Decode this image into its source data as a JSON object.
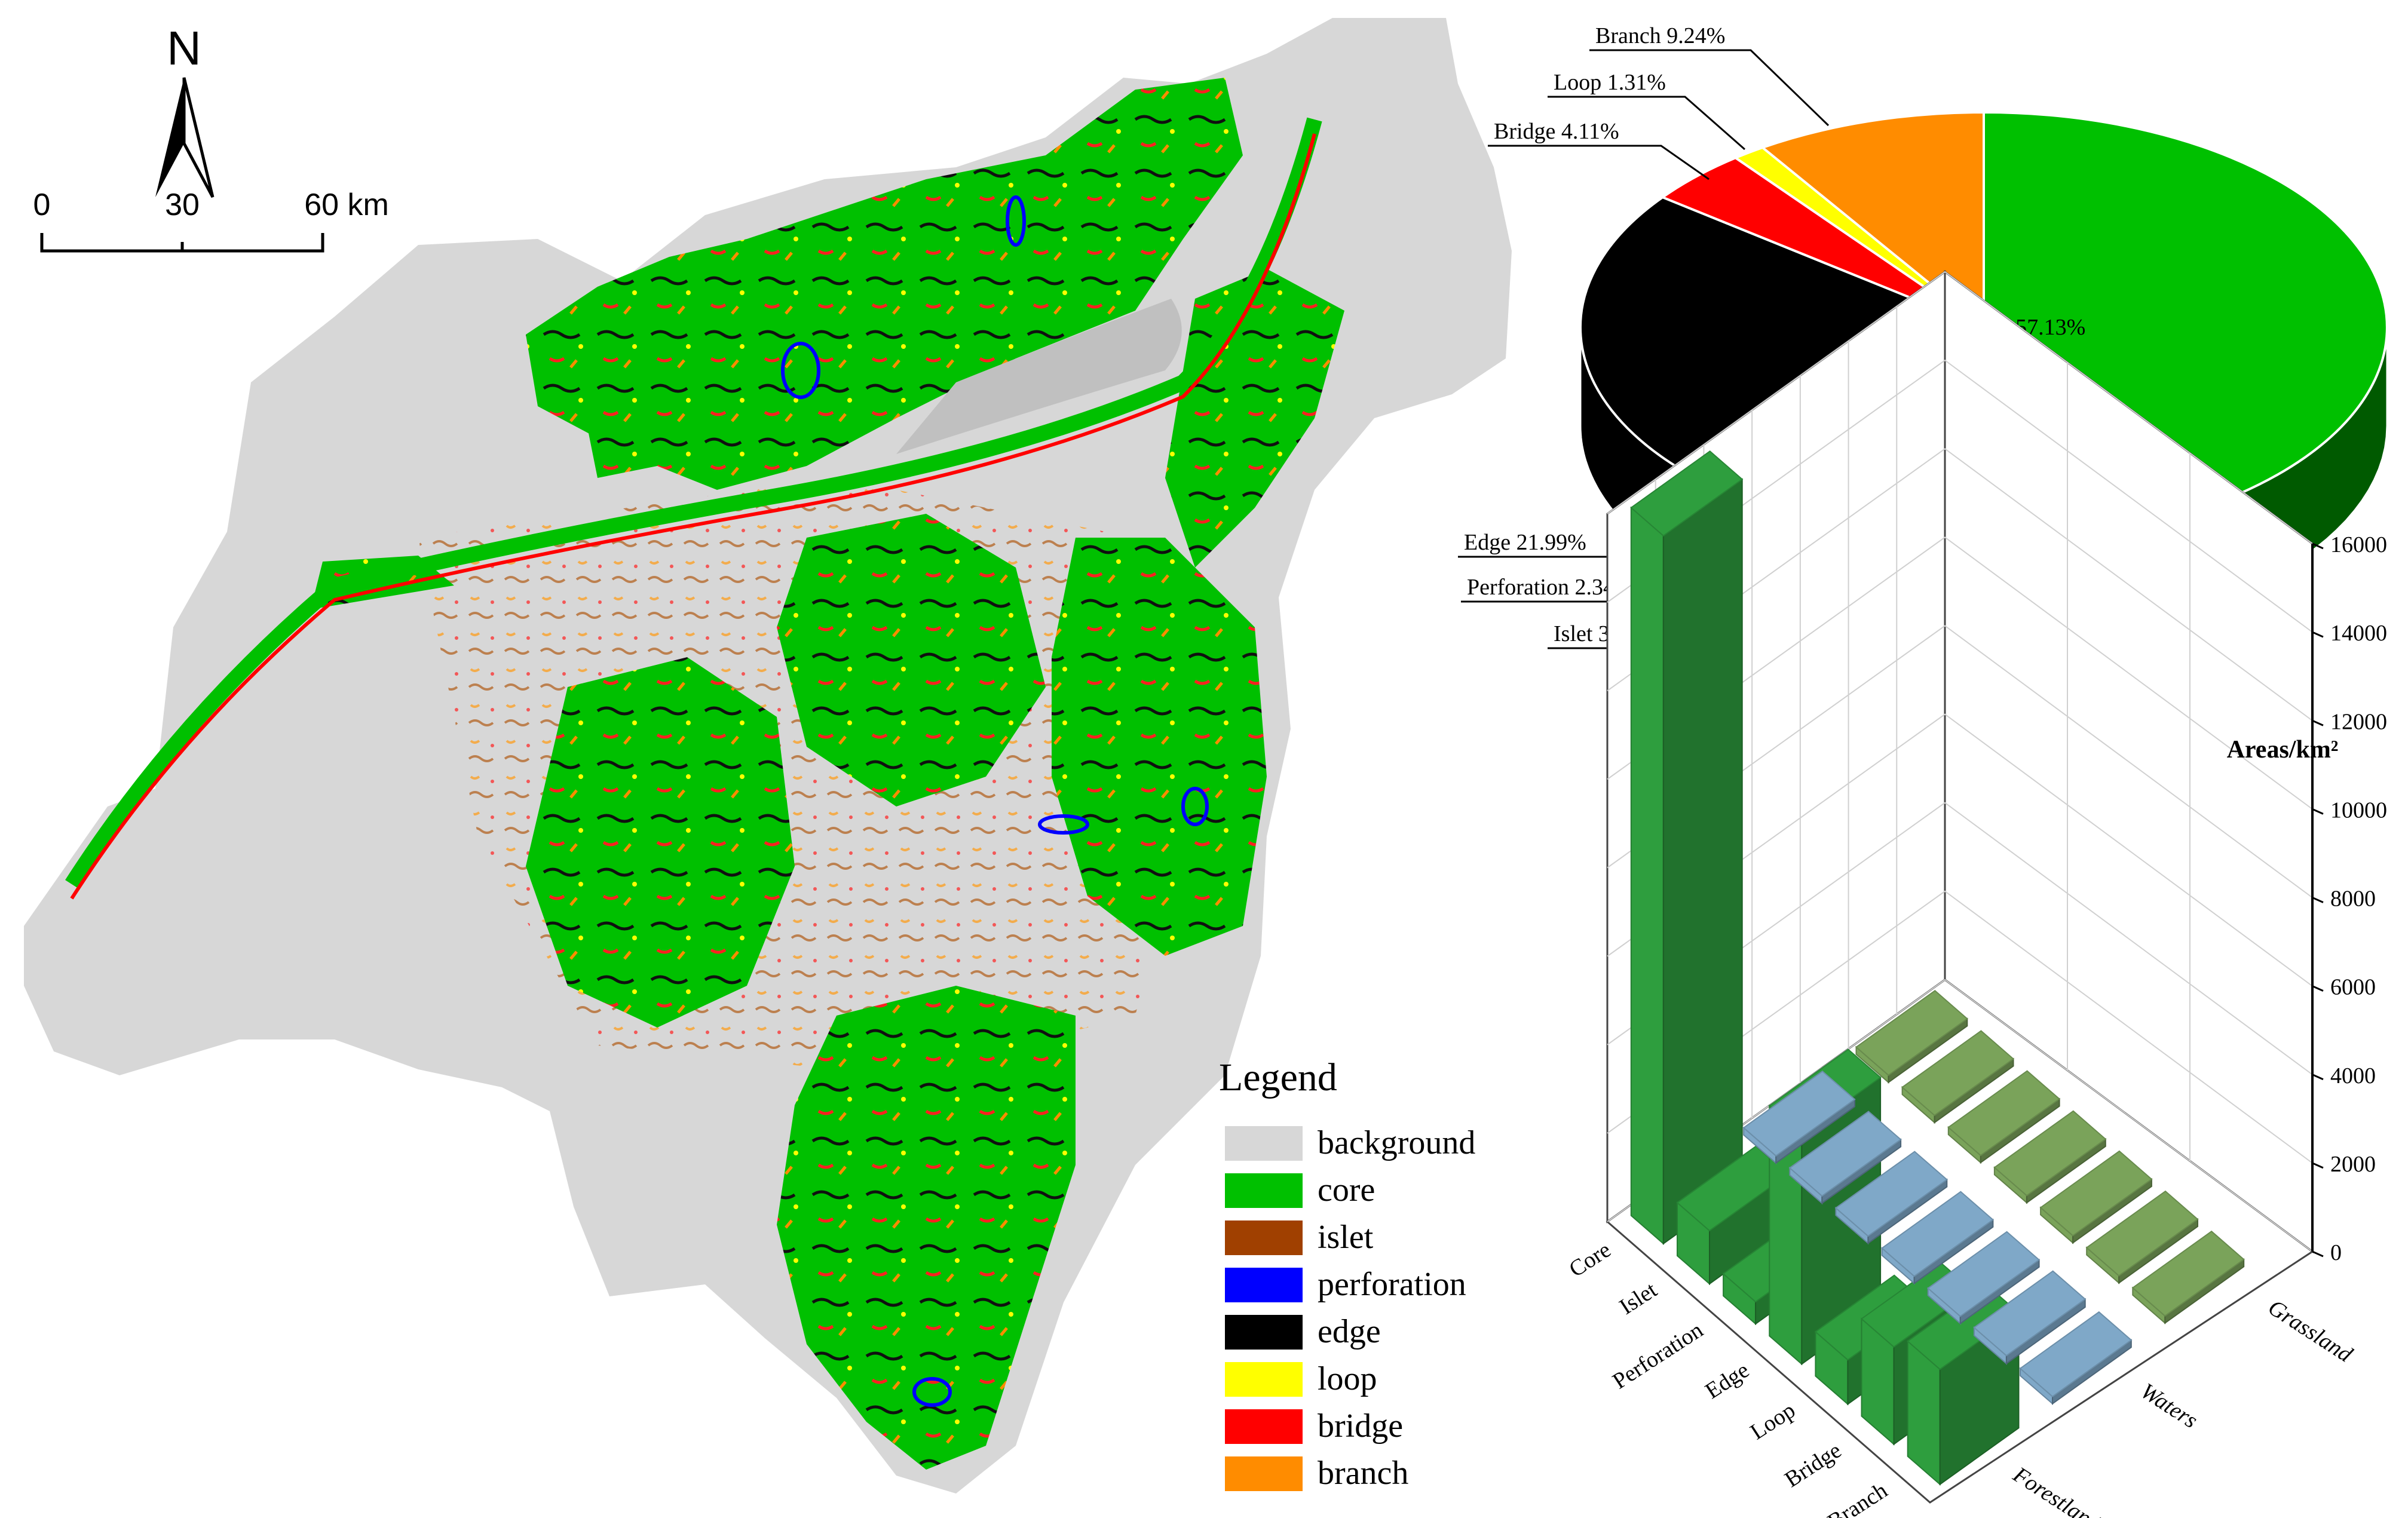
{
  "map": {
    "north_label": "N",
    "scale_labels": [
      "0",
      "30",
      "60 km"
    ],
    "legend": {
      "title": "Legend",
      "items": [
        {
          "label": "background",
          "color": "#d7d7d7"
        },
        {
          "label": "core",
          "color": "#00c000"
        },
        {
          "label": "islet",
          "color": "#a04000"
        },
        {
          "label": "perforation",
          "color": "#0000ff"
        },
        {
          "label": "edge",
          "color": "#000000"
        },
        {
          "label": "loop",
          "color": "#ffff00"
        },
        {
          "label": "bridge",
          "color": "#ff0000"
        },
        {
          "label": "branch",
          "color": "#ff8c00"
        }
      ]
    }
  },
  "chart_data": [
    {
      "type": "pie",
      "labels": [
        "Core 57.13%",
        "Edge 21.99%",
        "Perforation 2.34%",
        "Islet 3.88%",
        "Bridge 4.11%",
        "Loop 1.31%",
        "Branch 9.24%"
      ],
      "slices": [
        {
          "name": "Core",
          "value": 57.13,
          "color": "#00c000",
          "side": "#005a00"
        },
        {
          "name": "Islet",
          "value": 3.88,
          "color": "#a04000",
          "side": "#5c2400"
        },
        {
          "name": "Perforation",
          "value": 2.34,
          "color": "#0000ff",
          "side": "#00008a"
        },
        {
          "name": "Edge",
          "value": 21.99,
          "color": "#000000",
          "side": "#000000"
        },
        {
          "name": "Bridge",
          "value": 4.11,
          "color": "#ff0000",
          "side": "#900000"
        },
        {
          "name": "Loop",
          "value": 1.31,
          "color": "#ffff00",
          "side": "#9a9a00"
        },
        {
          "name": "Branch",
          "value": 9.24,
          "color": "#ff8c00",
          "side": "#9a5400"
        }
      ]
    },
    {
      "type": "bar",
      "ylabel": "Areas/km²",
      "ylim": [
        0,
        16000
      ],
      "yticks": [
        0,
        2000,
        4000,
        6000,
        8000,
        10000,
        12000,
        14000,
        16000
      ],
      "categories": [
        "Core",
        "Islet",
        "Perforation",
        "Edge",
        "Loop",
        "Bridge",
        "Branch"
      ],
      "series": [
        {
          "name": "Grassland",
          "color": "#7aa35a",
          "values": [
            80,
            70,
            70,
            70,
            70,
            70,
            60
          ]
        },
        {
          "name": "Waters",
          "color": "#7fa8c8",
          "values": [
            150,
            120,
            130,
            150,
            130,
            180,
            120
          ]
        },
        {
          "name": "Forestland",
          "color": "#2e9e3e",
          "values": [
            16000,
            1200,
            500,
            5200,
            1000,
            2200,
            2600
          ]
        }
      ]
    }
  ]
}
